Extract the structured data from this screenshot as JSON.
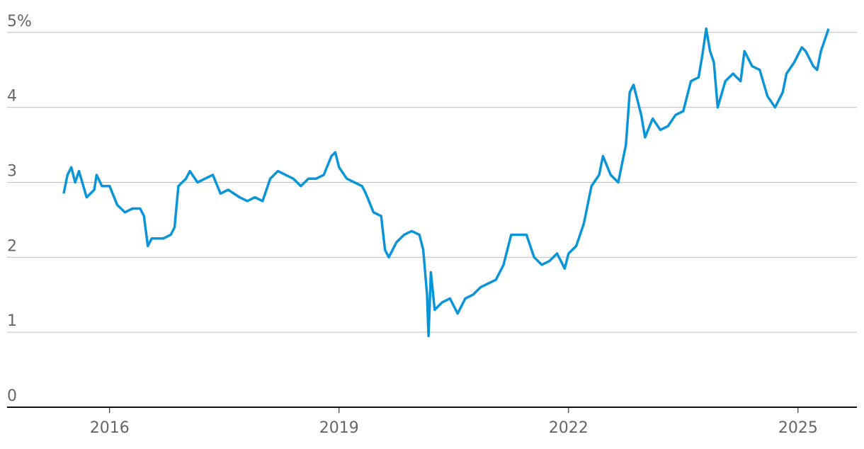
{
  "chart_data": {
    "type": "line",
    "x": [
      2015.4,
      2015.45,
      2015.5,
      2015.55,
      2015.6,
      2015.7,
      2015.8,
      2015.83,
      2015.9,
      2016.0,
      2016.1,
      2016.2,
      2016.3,
      2016.4,
      2016.45,
      2016.5,
      2016.55,
      2016.6,
      2016.7,
      2016.8,
      2016.85,
      2016.9,
      2017.0,
      2017.05,
      2017.15,
      2017.25,
      2017.35,
      2017.45,
      2017.55,
      2017.7,
      2017.8,
      2017.9,
      2018.0,
      2018.1,
      2018.2,
      2018.3,
      2018.4,
      2018.5,
      2018.6,
      2018.7,
      2018.8,
      2018.9,
      2018.95,
      2019.0,
      2019.1,
      2019.2,
      2019.3,
      2019.35,
      2019.45,
      2019.55,
      2019.6,
      2019.65,
      2019.75,
      2019.85,
      2019.95,
      2020.05,
      2020.1,
      2020.15,
      2020.17,
      2020.2,
      2020.25,
      2020.35,
      2020.45,
      2020.55,
      2020.65,
      2020.75,
      2020.85,
      2020.95,
      2021.05,
      2021.15,
      2021.25,
      2021.35,
      2021.45,
      2021.55,
      2021.65,
      2021.75,
      2021.85,
      2021.95,
      2022.0,
      2022.1,
      2022.2,
      2022.3,
      2022.4,
      2022.45,
      2022.55,
      2022.65,
      2022.75,
      2022.8,
      2022.85,
      2022.95,
      2023.0,
      2023.1,
      2023.2,
      2023.3,
      2023.4,
      2023.5,
      2023.6,
      2023.7,
      2023.75,
      2023.8,
      2023.85,
      2023.9,
      2023.95,
      2024.05,
      2024.15,
      2024.25,
      2024.3,
      2024.4,
      2024.5,
      2024.6,
      2024.7,
      2024.8,
      2024.85,
      2024.95,
      2025.05,
      2025.1,
      2025.2,
      2025.25,
      2025.3,
      2025.4
    ],
    "values": [
      2.85,
      3.1,
      3.2,
      3.0,
      3.15,
      2.8,
      2.9,
      3.1,
      2.95,
      2.95,
      2.7,
      2.6,
      2.65,
      2.65,
      2.55,
      2.15,
      2.25,
      2.25,
      2.25,
      2.3,
      2.4,
      2.95,
      3.05,
      3.15,
      3.0,
      3.05,
      3.1,
      2.85,
      2.9,
      2.8,
      2.75,
      2.8,
      2.75,
      3.05,
      3.15,
      3.1,
      3.05,
      2.95,
      3.05,
      3.05,
      3.1,
      3.35,
      3.4,
      3.2,
      3.05,
      3.0,
      2.95,
      2.85,
      2.6,
      2.55,
      2.1,
      2.0,
      2.2,
      2.3,
      2.35,
      2.3,
      2.1,
      1.5,
      0.95,
      1.8,
      1.3,
      1.4,
      1.45,
      1.25,
      1.45,
      1.5,
      1.6,
      1.65,
      1.7,
      1.9,
      2.3,
      2.3,
      2.3,
      2.0,
      1.9,
      1.95,
      2.05,
      1.85,
      2.05,
      2.15,
      2.45,
      2.95,
      3.1,
      3.35,
      3.1,
      3.0,
      3.5,
      4.2,
      4.3,
      3.9,
      3.6,
      3.85,
      3.7,
      3.75,
      3.9,
      3.95,
      4.35,
      4.4,
      4.7,
      5.05,
      4.75,
      4.6,
      4.0,
      4.35,
      4.45,
      4.35,
      4.75,
      4.55,
      4.5,
      4.15,
      4.0,
      4.2,
      4.45,
      4.6,
      4.8,
      4.75,
      4.55,
      4.5,
      4.75,
      5.05
    ],
    "color": "#0a95d8",
    "xlim": [
      2014.66,
      2025.77
    ],
    "xticks": [
      2016,
      2019,
      2022,
      2025
    ],
    "ylim": [
      0,
      5.3
    ],
    "yticks": [
      0,
      1,
      2,
      3,
      4,
      {
        "value": 5,
        "label": "5%"
      }
    ],
    "grid": true
  }
}
